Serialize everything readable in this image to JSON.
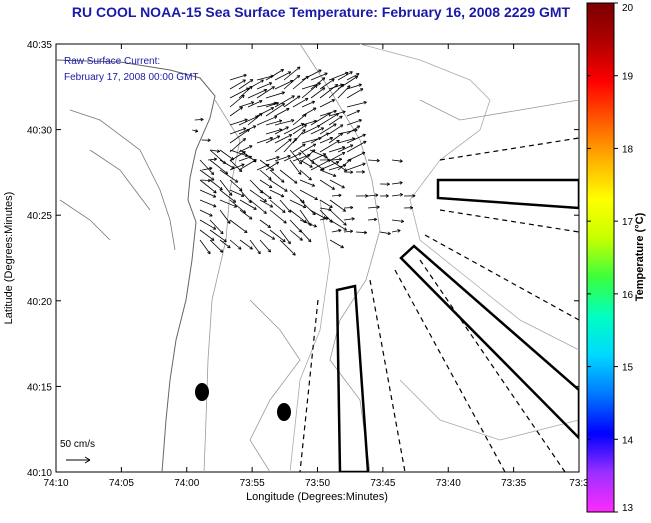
{
  "title": "RU COOL  NOAA-15  Sea Surface Temperature:  February 16, 2008 2229 GMT",
  "annotation": {
    "line1": "Raw Surface Current:",
    "line2": "February 17, 2008 00:00 GMT"
  },
  "axes": {
    "xlabel": "Longitude (Degrees:Minutes)",
    "ylabel": "Latitude (Degrees:Minutes)",
    "x_ticks": [
      "74:10",
      "74:05",
      "74:00",
      "73:55",
      "73:50",
      "73:45",
      "73:40",
      "73:35",
      "73:3"
    ],
    "y_ticks": [
      "40:10",
      "40:15",
      "40:20",
      "40:25",
      "40:30",
      "40:35"
    ]
  },
  "scale_label": "50 cm/s",
  "colorbar": {
    "label": "Temperature (°C)",
    "ticks": [
      "13",
      "14",
      "15",
      "16",
      "17",
      "18",
      "19",
      "20"
    ],
    "colors": [
      "#ff2bff",
      "#9b30ff",
      "#0000ff",
      "#0077ff",
      "#00d8ff",
      "#00ffc0",
      "#3cff3c",
      "#c8ff00",
      "#ffff00",
      "#ffb000",
      "#ff5a00",
      "#ff0000",
      "#b00000",
      "#7a0000"
    ]
  },
  "icons": {
    "markers": "black-ellipse-marker",
    "vectors": "current-arrow"
  }
}
